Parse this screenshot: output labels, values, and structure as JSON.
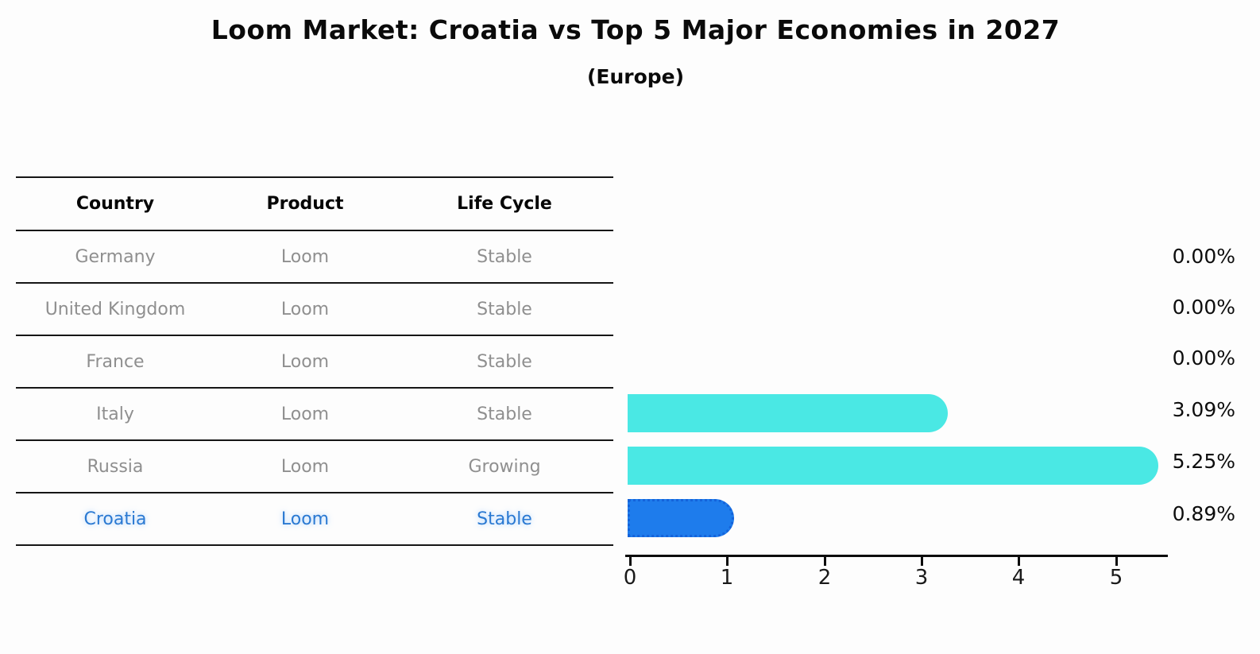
{
  "header": {
    "title": "Loom Market: Croatia vs Top 5 Major Economies in 2027",
    "subtitle": "(Europe)"
  },
  "table": {
    "columns": [
      "Country",
      "Product",
      "Life Cycle"
    ],
    "rows": [
      {
        "country": "Germany",
        "product": "Loom",
        "life_cycle": "Stable"
      },
      {
        "country": "United Kingdom",
        "product": "Loom",
        "life_cycle": "Stable"
      },
      {
        "country": "France",
        "product": "Loom",
        "life_cycle": "Stable"
      },
      {
        "country": "Italy",
        "product": "Loom",
        "life_cycle": "Stable"
      },
      {
        "country": "Russia",
        "product": "Loom",
        "life_cycle": "Growing"
      },
      {
        "country": "Croatia",
        "product": "Loom",
        "life_cycle": "Stable"
      }
    ],
    "highlight_row": "Croatia"
  },
  "chart_data": {
    "type": "bar",
    "orientation": "horizontal",
    "title": "Loom Market: Croatia vs Top 5 Major Economies in 2027",
    "subtitle": "(Europe)",
    "categories": [
      "Germany",
      "United Kingdom",
      "France",
      "Italy",
      "Russia",
      "Croatia"
    ],
    "values": [
      0,
      0,
      0,
      3.09,
      5.25,
      0.89
    ],
    "value_labels": [
      "0.00%",
      "0.00%",
      "0.00%",
      "3.09%",
      "5.25%",
      "0.89%"
    ],
    "x_ticks": [
      "0",
      "1",
      "2",
      "3",
      "4",
      "5"
    ],
    "xlim": [
      0,
      5.5
    ],
    "grid": false,
    "legend": false,
    "bar_color": "#4ae8e4",
    "highlight_bar_color": "#1e7cec",
    "highlight_text_color": "#2a79d2",
    "highlight_index": 5
  }
}
